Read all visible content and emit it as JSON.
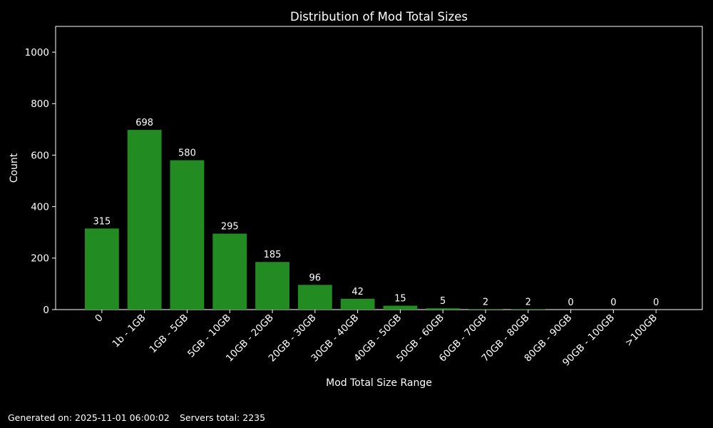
{
  "figure": {
    "background": "#000000",
    "text_color": "#ffffff"
  },
  "chart_data": {
    "type": "bar",
    "title": "Distribution of Mod Total Sizes",
    "xlabel": "Mod Total Size Range",
    "ylabel": "Count",
    "categories": [
      "0",
      "1b - 1GB",
      "1GB - 5GB",
      "5GB - 10GB",
      "10GB - 20GB",
      "20GB - 30GB",
      "30GB - 40GB",
      "40GB - 50GB",
      "50GB - 60GB",
      "60GB - 70GB",
      "70GB - 80GB",
      "80GB - 90GB",
      "90GB - 100GB",
      ">100GB"
    ],
    "values": [
      315,
      698,
      580,
      295,
      185,
      96,
      42,
      15,
      5,
      2,
      2,
      0,
      0,
      0
    ],
    "yticks": [
      0,
      200,
      400,
      600,
      800,
      1000
    ],
    "ylim": [
      0,
      1100
    ],
    "xlim": [
      -1.085,
      14.085
    ],
    "bar_color": "#228B22",
    "axis_color": "#ffffff",
    "bar_width_fraction": 0.8,
    "grid": false,
    "legend": null,
    "value_labels_shown": true,
    "x_tick_rotation_deg": 45
  },
  "footer": {
    "generated": "Generated on: 2025-11-01 06:00:02",
    "servers_total": "Servers total: 2235"
  }
}
